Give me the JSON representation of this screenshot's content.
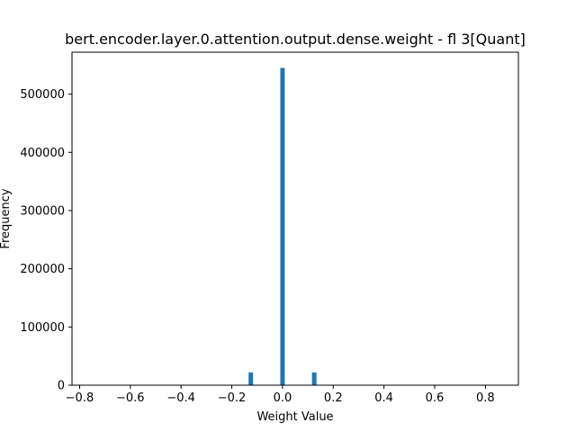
{
  "chart_data": {
    "type": "bar",
    "title": "bert.encoder.layer.0.attention.output.dense.weight - fl 3[Quant]",
    "xlabel": "Weight Value",
    "ylabel": "Frequency",
    "xlim": [
      -0.83,
      0.93
    ],
    "ylim": [
      0,
      572000
    ],
    "xticks": [
      -0.8,
      -0.6,
      -0.4,
      -0.2,
      0.0,
      0.2,
      0.4,
      0.6,
      0.8
    ],
    "xtick_labels": [
      "−0.8",
      "−0.6",
      "−0.4",
      "−0.2",
      "0.0",
      "0.2",
      "0.4",
      "0.6",
      "0.8"
    ],
    "yticks": [
      0,
      100000,
      200000,
      300000,
      400000,
      500000
    ],
    "ytick_labels": [
      "0",
      "100000",
      "200000",
      "300000",
      "400000",
      "500000"
    ],
    "bars": [
      {
        "x": -0.125,
        "value": 22000
      },
      {
        "x": 0.0,
        "value": 545000
      },
      {
        "x": 0.125,
        "value": 22000
      }
    ],
    "bar_width": 0.0175,
    "bar_color": "#1f77b4",
    "grid": false,
    "legend": "none"
  }
}
